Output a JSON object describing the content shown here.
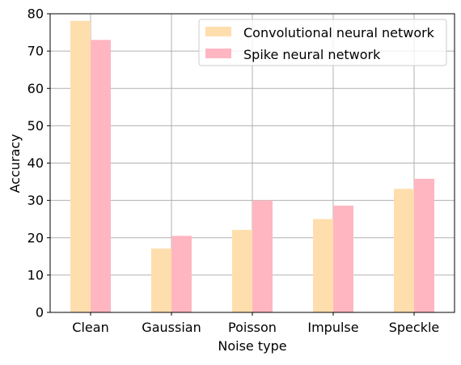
{
  "chart_data": {
    "type": "bar",
    "title": "",
    "xlabel": "Noise type",
    "ylabel": "Accuracy",
    "categories": [
      "Clean",
      "Gaussian",
      "Poisson",
      "Impulse",
      "Speckle"
    ],
    "series": [
      {
        "name": "Convolutional neural network",
        "values": [
          78.1,
          17.1,
          22.1,
          25.0,
          33.1
        ],
        "color": "#FFDEAD"
      },
      {
        "name": "Spike neural network",
        "values": [
          73.0,
          20.5,
          30.0,
          28.6,
          35.8
        ],
        "color": "#FFB6C1"
      }
    ],
    "ylim": [
      0,
      80
    ],
    "yticks": [
      "0",
      "10",
      "20",
      "30",
      "40",
      "50",
      "60",
      "70",
      "80"
    ],
    "grid": true,
    "legend_position": "upper-right",
    "colors": {
      "grid": "#b0b0b0",
      "axis": "#000000"
    }
  }
}
